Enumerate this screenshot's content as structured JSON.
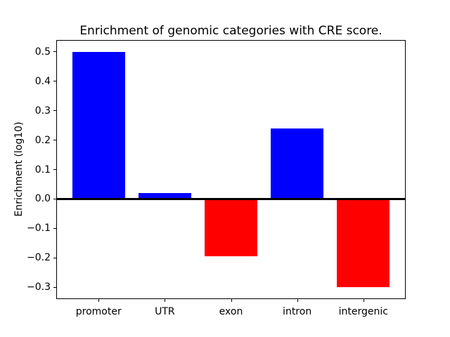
{
  "chart_data": {
    "type": "bar",
    "title": "Enrichment of genomic categories with CRE score.",
    "xlabel": "",
    "ylabel": "Enrichment (log10)",
    "categories": [
      "promoter",
      "UTR",
      "exon",
      "intron",
      "intergenic"
    ],
    "values": [
      0.5,
      0.02,
      -0.195,
      0.24,
      -0.3
    ],
    "positive_color": "#0000ff",
    "negative_color": "#ff0000",
    "bar_colors": [
      "#0000ff",
      "#0000ff",
      "#ff0000",
      "#0000ff",
      "#ff0000"
    ],
    "bar_width": 0.8,
    "xlim": [
      -0.64,
      4.64
    ],
    "ylim": [
      -0.34,
      0.54
    ],
    "yticks": [
      0.5,
      0.4,
      0.3,
      0.2,
      0.1,
      0.0,
      -0.1,
      -0.2,
      -0.3
    ],
    "ytick_labels": [
      "0.5",
      "0.4",
      "0.3",
      "0.2",
      "0.1",
      "0.0",
      "−0.1",
      "−0.2",
      "−0.3"
    ],
    "zero_line": true,
    "grid": false,
    "legend": null,
    "spine_color": "#000000",
    "text_color": "#000000",
    "background_color": "#ffffff"
  }
}
